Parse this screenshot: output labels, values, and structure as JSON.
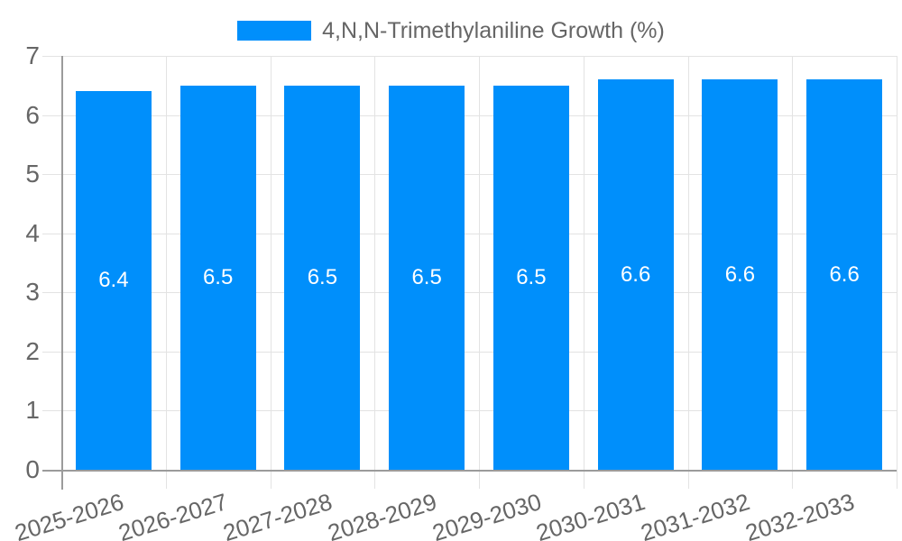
{
  "chart_data": {
    "type": "bar",
    "title": "4,N,N-Trimethylaniline Growth (%)",
    "legend_position": "top",
    "categories": [
      "2025-2026",
      "2026-2027",
      "2027-2028",
      "2028-2029",
      "2029-2030",
      "2030-2031",
      "2031-2032",
      "2032-2033"
    ],
    "series": [
      {
        "name": "4,N,N-Trimethylaniline Growth (%)",
        "values": [
          6.4,
          6.5,
          6.5,
          6.5,
          6.5,
          6.6,
          6.6,
          6.6
        ],
        "value_labels": [
          "6.4",
          "6.5",
          "6.5",
          "6.5",
          "6.5",
          "6.6",
          "6.6",
          "6.6"
        ]
      }
    ],
    "xlabel": "",
    "ylabel": "",
    "ylim": [
      0,
      7
    ],
    "y_ticks": [
      0,
      1,
      2,
      3,
      4,
      5,
      6,
      7
    ],
    "y_tick_labels": [
      "0",
      "1",
      "2",
      "3",
      "4",
      "5",
      "6",
      "7"
    ],
    "grid": true,
    "colors": {
      "bar": "#008FFB",
      "value_label_text": "#FFFFFF",
      "axis_line": "#9B9B9B",
      "gridline": "#E3E3E3",
      "tick_text": "#666666",
      "background": "#FFFFFF"
    }
  }
}
